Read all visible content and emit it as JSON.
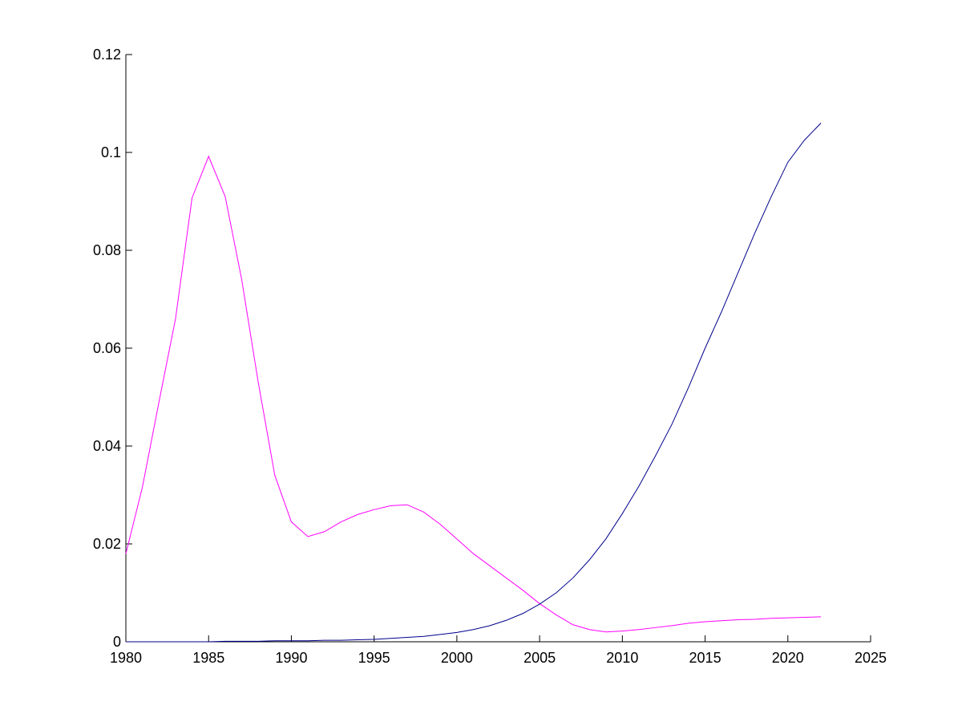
{
  "chart_data": {
    "type": "line",
    "x": [
      1980,
      1981,
      1982,
      1983,
      1984,
      1985,
      1986,
      1987,
      1988,
      1989,
      1990,
      1991,
      1992,
      1993,
      1994,
      1995,
      1996,
      1997,
      1998,
      1999,
      2000,
      2001,
      2002,
      2003,
      2004,
      2005,
      2006,
      2007,
      2008,
      2009,
      2010,
      2011,
      2012,
      2013,
      2014,
      2015,
      2016,
      2017,
      2018,
      2019,
      2020,
      2021,
      2022
    ],
    "series": [
      {
        "color": "#ff00ff",
        "values": [
          0.018,
          0.0316,
          0.049,
          0.066,
          0.0907,
          0.0992,
          0.091,
          0.074,
          0.053,
          0.034,
          0.0245,
          0.0215,
          0.0225,
          0.0245,
          0.026,
          0.027,
          0.0278,
          0.028,
          0.0265,
          0.024,
          0.021,
          0.018,
          0.0155,
          0.013,
          0.0105,
          0.0078,
          0.0055,
          0.0035,
          0.0025,
          0.002,
          0.0022,
          0.0025,
          0.0029,
          0.0033,
          0.0038,
          0.0041,
          0.0043,
          0.0045,
          0.0046,
          0.0048,
          0.0049,
          0.005,
          0.0051
        ]
      },
      {
        "color": "#00008b",
        "values": [
          0,
          0,
          0,
          0,
          0,
          0,
          0.0001,
          0.0001,
          0.0001,
          0.0002,
          0.0002,
          0.0002,
          0.0003,
          0.0003,
          0.0004,
          0.0005,
          0.0007,
          0.0009,
          0.0011,
          0.0015,
          0.0019,
          0.0025,
          0.0033,
          0.0044,
          0.0058,
          0.0077,
          0.01,
          0.013,
          0.0167,
          0.021,
          0.0262,
          0.0318,
          0.038,
          0.0445,
          0.052,
          0.06,
          0.0675,
          0.0755,
          0.0835,
          0.091,
          0.098,
          0.1025,
          0.106
        ]
      }
    ],
    "xlim": [
      1980,
      2025
    ],
    "xticks": [
      1980,
      1985,
      1990,
      1995,
      2000,
      2005,
      2010,
      2015,
      2020,
      2025
    ],
    "ylim": [
      0,
      0.12
    ],
    "yticks": [
      0,
      0.02,
      0.04,
      0.06,
      0.08,
      0.1,
      0.12
    ]
  }
}
